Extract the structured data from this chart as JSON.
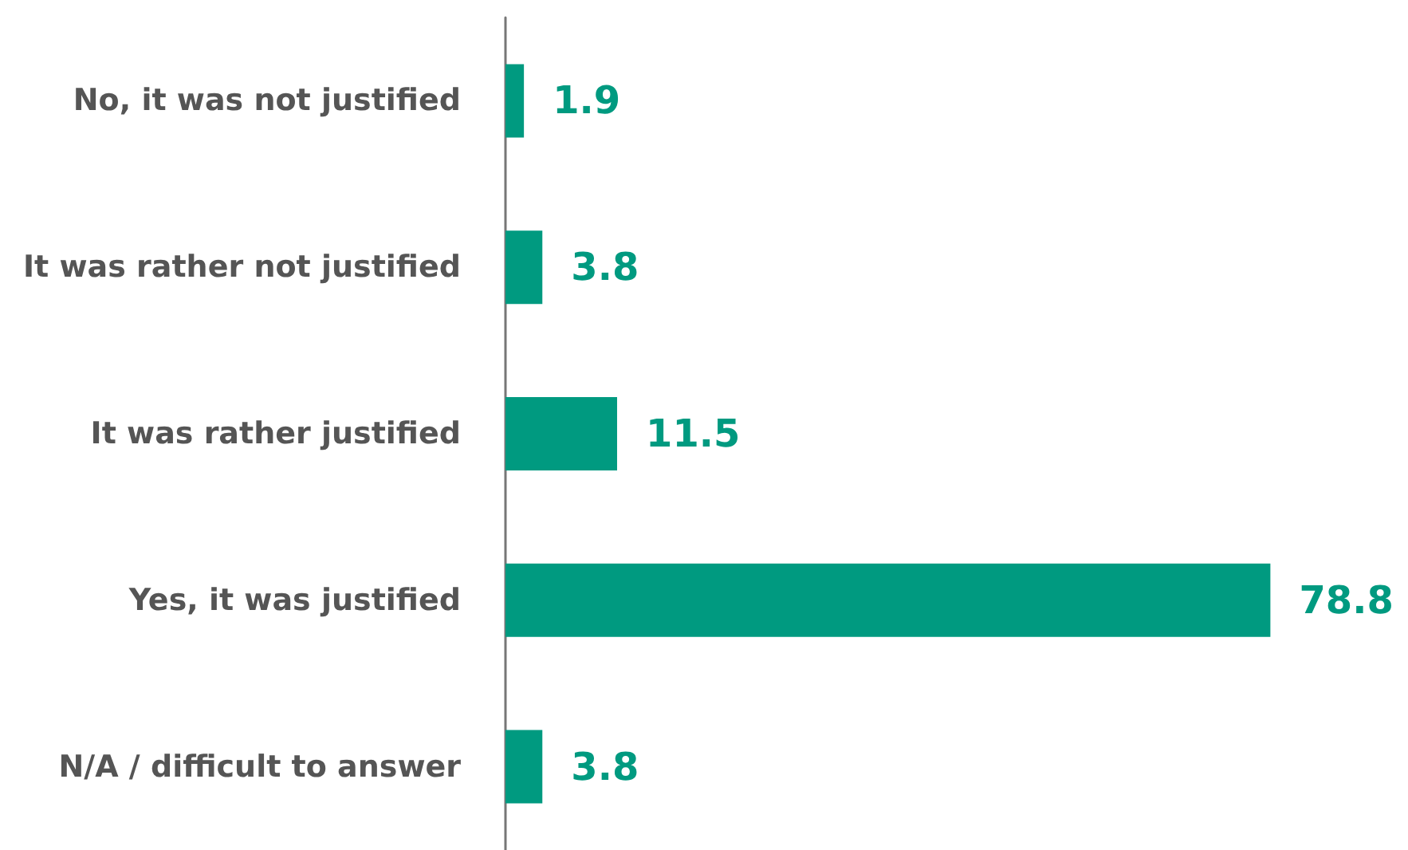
{
  "chart_data": {
    "type": "bar",
    "orientation": "horizontal",
    "categories": [
      "No, it was not justified",
      "It was rather not justified",
      "It was rather justified",
      "Yes, it was justified",
      "N/A / difficult to answer"
    ],
    "values": [
      1.9,
      3.8,
      11.5,
      78.8,
      3.8
    ],
    "color": "#009a80",
    "data_labels": true
  }
}
